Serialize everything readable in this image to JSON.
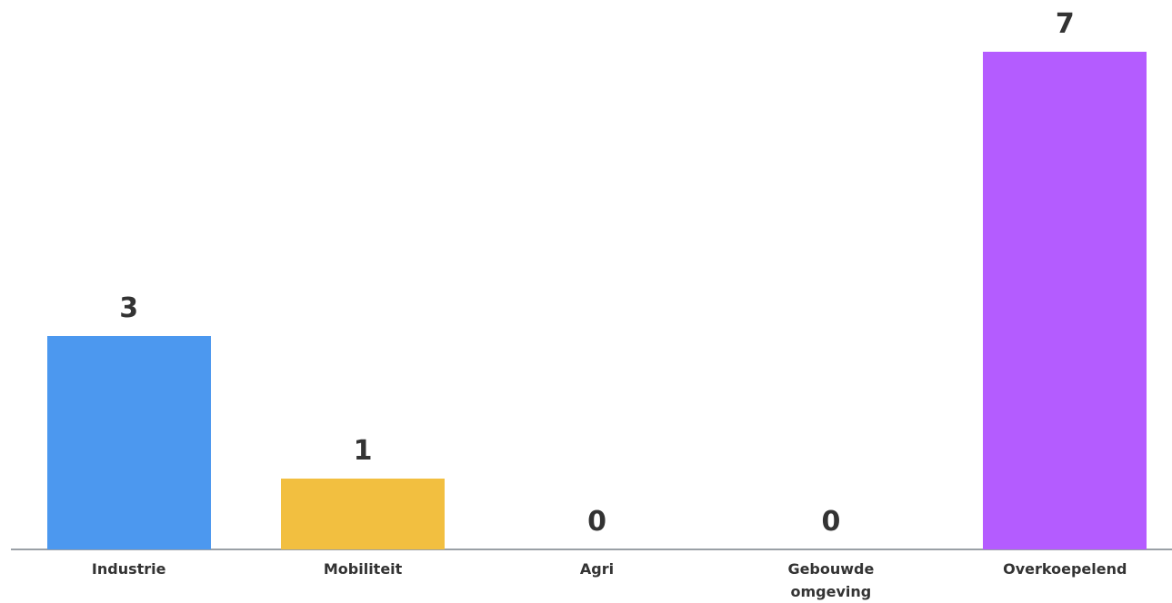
{
  "chart_data": {
    "type": "bar",
    "categories": [
      "Industrie",
      "Mobiliteit",
      "Agri",
      "Gebouwde omgeving",
      "Overkoepelend"
    ],
    "values": [
      3,
      1,
      0,
      0,
      7
    ],
    "colors": [
      "#4c98ef",
      "#f2bf40",
      "#8bc34a",
      "#26a69a",
      "#b45cff"
    ]
  }
}
